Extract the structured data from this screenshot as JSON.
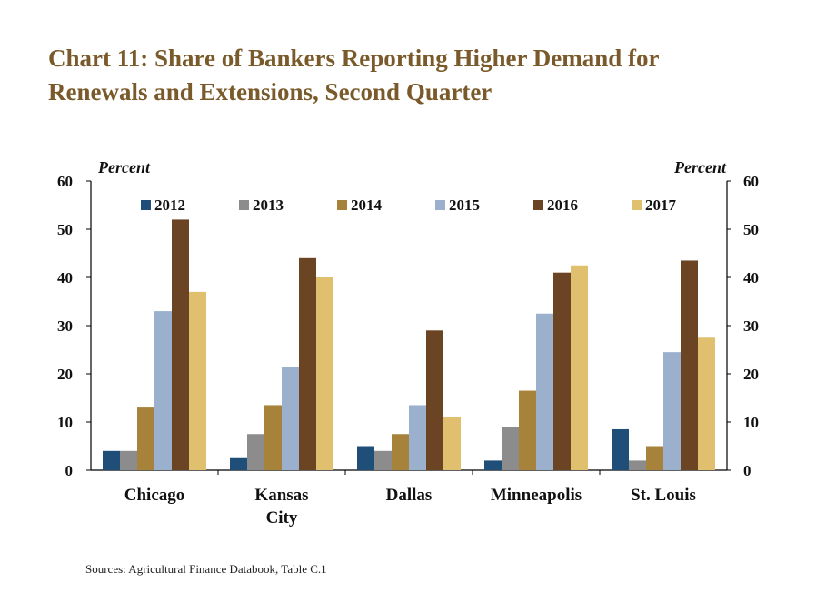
{
  "title_line1": "Chart 11: Share of Bankers Reporting Higher Demand for",
  "title_line2": "Renewals and Extensions, Second Quarter",
  "source": "Sources: Agricultural Finance Databook, Table C.1",
  "chart_data": {
    "type": "bar",
    "title": "Chart 11: Share of Bankers Reporting Higher Demand for Renewals and Extensions, Second Quarter",
    "unit_left": "Percent",
    "unit_right": "Percent",
    "ylim": [
      0,
      60
    ],
    "yticks": [
      0,
      10,
      20,
      30,
      40,
      50,
      60
    ],
    "legend_position": "top",
    "categories": [
      [
        "Chicago"
      ],
      [
        "Kansas",
        "City"
      ],
      [
        "Dallas"
      ],
      [
        "Minneapolis"
      ],
      [
        "St. Louis"
      ]
    ],
    "series": [
      {
        "name": "2012",
        "color": "#1f4e79",
        "values": [
          4,
          2.5,
          5,
          2,
          8.5
        ]
      },
      {
        "name": "2013",
        "color": "#8c8c8c",
        "values": [
          4,
          7.5,
          4,
          9,
          2
        ]
      },
      {
        "name": "2014",
        "color": "#a6823a",
        "values": [
          13,
          13.5,
          7.5,
          16.5,
          5
        ]
      },
      {
        "name": "2015",
        "color": "#9bb0cc",
        "values": [
          33,
          21.5,
          13.5,
          32.5,
          24.5
        ]
      },
      {
        "name": "2016",
        "color": "#6b4423",
        "values": [
          52,
          44,
          29,
          41,
          43.5
        ]
      },
      {
        "name": "2017",
        "color": "#e0bf6e",
        "values": [
          37,
          40,
          11,
          42.5,
          27.5
        ]
      }
    ]
  }
}
